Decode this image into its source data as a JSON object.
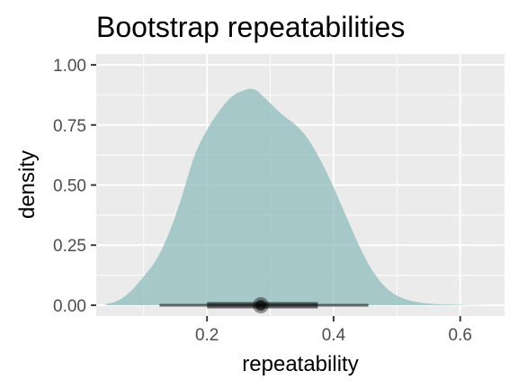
{
  "chart_data": {
    "type": "area",
    "title": "Bootstrap repeatabilities",
    "xlabel": "repeatability",
    "ylabel": "density",
    "xlim": [
      0.025,
      0.67
    ],
    "ylim": [
      -0.045,
      1.045
    ],
    "x_ticks": [
      0.2,
      0.4,
      0.6
    ],
    "x_tick_labels": [
      "0.2",
      "0.4",
      "0.6"
    ],
    "y_ticks": [
      0,
      0.25,
      0.5,
      0.75,
      1.0
    ],
    "y_tick_labels": [
      "0.00",
      "0.25",
      "0.50",
      "0.75",
      "1.00"
    ],
    "grid": true,
    "legend": "none",
    "colors": {
      "panel_background": "#ebebeb",
      "grid": "#ffffff",
      "density_fill": "#8fbcbc",
      "interval": "#000000"
    },
    "density_curve": {
      "x": [
        0.04,
        0.06,
        0.08,
        0.1,
        0.12,
        0.14,
        0.16,
        0.18,
        0.2,
        0.22,
        0.24,
        0.26,
        0.27,
        0.28,
        0.3,
        0.32,
        0.34,
        0.36,
        0.38,
        0.4,
        0.42,
        0.44,
        0.46,
        0.48,
        0.5,
        0.52,
        0.54,
        0.56,
        0.58,
        0.6,
        0.62,
        0.64
      ],
      "y": [
        0.005,
        0.02,
        0.06,
        0.12,
        0.19,
        0.3,
        0.45,
        0.62,
        0.73,
        0.81,
        0.87,
        0.895,
        0.9,
        0.89,
        0.84,
        0.79,
        0.75,
        0.69,
        0.6,
        0.49,
        0.37,
        0.25,
        0.15,
        0.08,
        0.04,
        0.02,
        0.01,
        0.005,
        0.003,
        0.002,
        0.001,
        0.0005
      ]
    },
    "point_interval": {
      "point": 0.285,
      "inner_interval": [
        0.2,
        0.375
      ],
      "outer_interval": [
        0.125,
        0.455
      ]
    }
  }
}
